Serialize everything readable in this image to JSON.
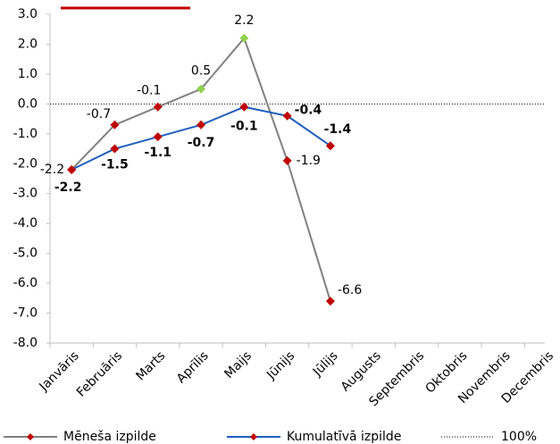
{
  "chart_data": {
    "type": "line",
    "categories": [
      "Janvāris",
      "Februāris",
      "Marts",
      "Aprīlis",
      "Maijs",
      "Jūnijs",
      "Jūlijs",
      "Augusts",
      "Septembris",
      "Oktobris",
      "Novembris",
      "Decembris"
    ],
    "series": [
      {
        "name": "Mēneša izpilde",
        "color": "#808080",
        "marker_color": "#c00000",
        "marker_colors": [
          "#c00000",
          "#c00000",
          "#c00000",
          "#92d050",
          "#92d050",
          "#c00000",
          "#c00000",
          null,
          null,
          null,
          null,
          null
        ],
        "values": [
          -2.2,
          -0.7,
          -0.1,
          0.5,
          2.2,
          -1.9,
          -6.6,
          null,
          null,
          null,
          null,
          null
        ]
      },
      {
        "name": "Kumulatīvā izpilde",
        "color": "#1f5fbf",
        "marker_color": "#c00000",
        "values": [
          -2.2,
          -1.5,
          -1.1,
          -0.7,
          -0.1,
          -0.4,
          -1.4,
          null,
          null,
          null,
          null,
          null
        ]
      }
    ],
    "reference_line": {
      "name": "100%",
      "value": 0,
      "color": "#000000"
    },
    "ylim": [
      -8,
      3
    ],
    "yticks": [
      {
        "value": -8,
        "label": "-8.0"
      },
      {
        "value": -7,
        "label": "-7.0"
      },
      {
        "value": -6,
        "label": "-6.0"
      },
      {
        "value": -5,
        "label": "-5.0"
      },
      {
        "value": -4,
        "label": "-4.0"
      },
      {
        "value": -3,
        "label": "-3.0"
      },
      {
        "value": -2,
        "label": "-2.0"
      },
      {
        "value": -1,
        "label": "-1.0"
      },
      {
        "value": 0,
        "label": "0.0"
      },
      {
        "value": 1,
        "label": "1.0"
      },
      {
        "value": 2,
        "label": "2.0"
      },
      {
        "value": 3,
        "label": "3.0"
      }
    ],
    "grid": false
  }
}
